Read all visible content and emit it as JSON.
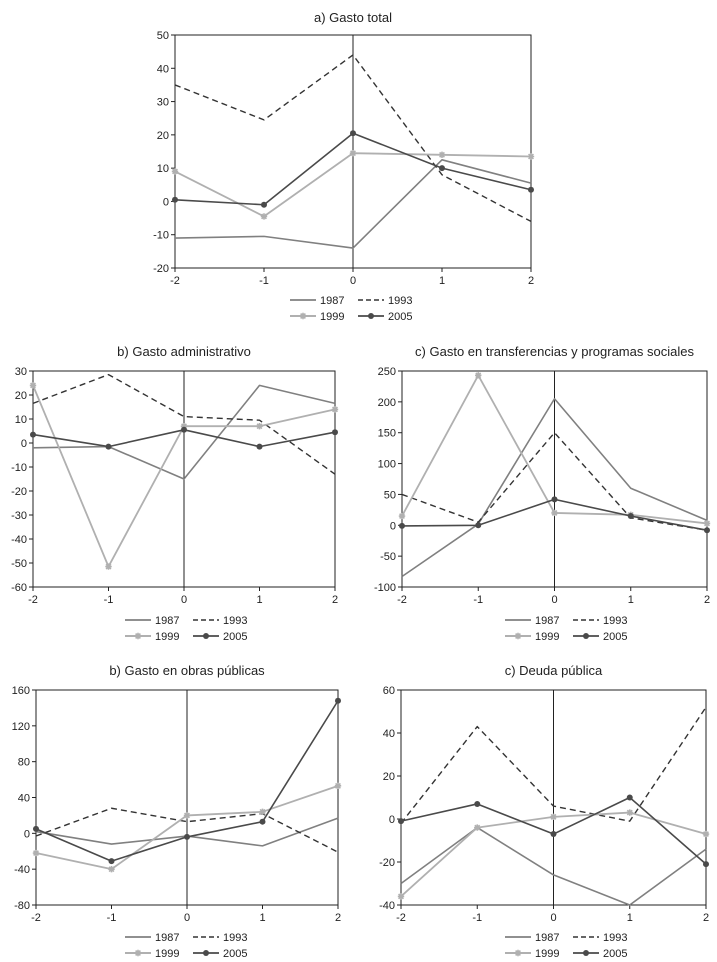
{
  "colors": {
    "s1987": "#808080",
    "s1993": "#333333",
    "s1999": "#b0b0b0",
    "s2005": "#4a4a4a",
    "axis": "#222222"
  },
  "chart_data": [
    {
      "id": "a",
      "type": "line",
      "title": "a) Gasto total",
      "x": [
        -2,
        -1,
        0,
        1,
        2
      ],
      "ylim": [
        -20,
        50
      ],
      "yticks": [
        -20,
        -10,
        0,
        10,
        20,
        30,
        40,
        50
      ],
      "xtick_labels": [
        "-2",
        "-1",
        "0",
        "1",
        "2"
      ],
      "ytick_labels": [
        "-20",
        "-10",
        "0",
        "10",
        "20",
        "30",
        "40",
        "50"
      ],
      "series": [
        {
          "name": "1987",
          "values": [
            -11,
            -10.5,
            -14,
            12.5,
            5.5
          ]
        },
        {
          "name": "1993",
          "values": [
            35,
            24.5,
            44,
            8,
            -6
          ]
        },
        {
          "name": "1999",
          "values": [
            9,
            -4.5,
            14.5,
            14,
            13.5
          ]
        },
        {
          "name": "2005",
          "values": [
            0.5,
            -1,
            20.5,
            10,
            3.5
          ]
        }
      ],
      "legend": [
        "1987",
        "1993",
        "1999",
        "2005"
      ]
    },
    {
      "id": "b",
      "type": "line",
      "title": "b) Gasto administrativo",
      "x": [
        -2,
        -1,
        0,
        1,
        2
      ],
      "ylim": [
        -60,
        30
      ],
      "yticks": [
        -60,
        -50,
        -40,
        -30,
        -20,
        -10,
        0,
        10,
        20,
        30
      ],
      "xtick_labels": [
        "-2",
        "-1",
        "0",
        "1",
        "2"
      ],
      "ytick_labels": [
        "-60",
        "-50",
        "-40",
        "-30",
        "-20",
        "-10",
        "0",
        "10",
        "20",
        "30"
      ],
      "series": [
        {
          "name": "1987",
          "values": [
            -2,
            -1.5,
            -15,
            24,
            16.5
          ]
        },
        {
          "name": "1993",
          "values": [
            16.5,
            28.5,
            11,
            9.5,
            -13
          ]
        },
        {
          "name": "1999",
          "values": [
            24,
            -51.5,
            7,
            7,
            14
          ]
        },
        {
          "name": "2005",
          "values": [
            3.5,
            -1.5,
            5.5,
            -1.5,
            4.5
          ]
        }
      ],
      "legend": [
        "1987",
        "1993",
        "1999",
        "2005"
      ]
    },
    {
      "id": "c",
      "type": "line",
      "title": "c) Gasto en transferencias y programas sociales",
      "x": [
        -2,
        -1,
        0,
        1,
        2
      ],
      "ylim": [
        -100,
        250
      ],
      "yticks": [
        -100,
        -50,
        0,
        50,
        100,
        150,
        200,
        250
      ],
      "xtick_labels": [
        "-2",
        "-1",
        "0",
        "1",
        "2"
      ],
      "ytick_labels": [
        "-100",
        "-50",
        "0",
        "50",
        "100",
        "150",
        "200",
        "250"
      ],
      "series": [
        {
          "name": "1987",
          "values": [
            -83,
            2,
            205,
            60,
            8
          ]
        },
        {
          "name": "1993",
          "values": [
            50,
            5,
            150,
            12,
            -8
          ]
        },
        {
          "name": "1999",
          "values": [
            15,
            243,
            20,
            17,
            3
          ]
        },
        {
          "name": "2005",
          "values": [
            -1,
            0,
            42,
            15,
            -8
          ]
        }
      ],
      "legend": [
        "1987",
        "1993",
        "1999",
        "2005"
      ]
    },
    {
      "id": "d",
      "type": "line",
      "title": "b) Gasto en obras públicas",
      "x": [
        -2,
        -1,
        0,
        1,
        2
      ],
      "ylim": [
        -80,
        160
      ],
      "yticks": [
        -80,
        -40,
        0,
        40,
        80,
        120,
        160
      ],
      "xtick_labels": [
        "-2",
        "-1",
        "0",
        "1",
        "2"
      ],
      "ytick_labels": [
        "-80",
        "-40",
        "0",
        "40",
        "80",
        "120",
        "160"
      ],
      "series": [
        {
          "name": "1987",
          "values": [
            2,
            -12,
            -3,
            -14,
            17
          ]
        },
        {
          "name": "1993",
          "values": [
            -3,
            28,
            13,
            22,
            -21
          ]
        },
        {
          "name": "1999",
          "values": [
            -22,
            -40,
            20,
            24,
            53
          ]
        },
        {
          "name": "2005",
          "values": [
            5,
            -31,
            -4,
            13,
            148
          ]
        }
      ],
      "legend": [
        "1987",
        "1993",
        "1999",
        "2005"
      ]
    },
    {
      "id": "e",
      "type": "line",
      "title": "c) Deuda pública",
      "x": [
        -2,
        -1,
        0,
        1,
        2
      ],
      "ylim": [
        -40,
        60
      ],
      "yticks": [
        -40,
        -20,
        0,
        20,
        40,
        60
      ],
      "xtick_labels": [
        "-2",
        "-1",
        "0",
        "1",
        "2"
      ],
      "ytick_labels": [
        "-40",
        "-20",
        "0",
        "20",
        "40",
        "60"
      ],
      "series": [
        {
          "name": "1987",
          "values": [
            -30,
            -4,
            -26,
            -40,
            -14
          ]
        },
        {
          "name": "1993",
          "values": [
            -2,
            43,
            6,
            -1,
            52
          ]
        },
        {
          "name": "1999",
          "values": [
            -36,
            -4,
            1,
            3,
            -7
          ]
        },
        {
          "name": "2005",
          "values": [
            -1,
            7,
            -7,
            10,
            -21
          ]
        }
      ],
      "legend": [
        "1987",
        "1993",
        "1999",
        "2005"
      ]
    }
  ]
}
